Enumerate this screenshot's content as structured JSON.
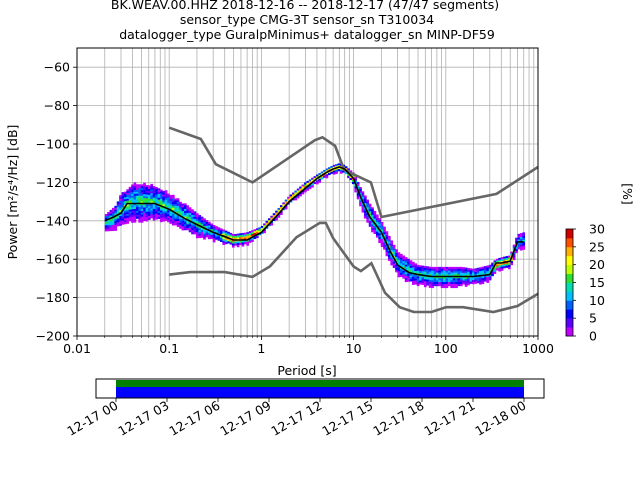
{
  "chart_data": {
    "type": "heatmap",
    "title_lines": [
      "BK.WEAV.00.HHZ   2018-12-16 -- 2018-12-17  (47/47 segments)",
      "sensor_type CMG-3T sensor_sn T310034",
      "datalogger_type GuralpMinimus+ datalogger_sn MINP-DF59"
    ],
    "xlabel": "Period [s]",
    "ylabel": "Power [m²/s⁴/Hz] [dB]",
    "xscale": "log",
    "xlim": [
      0.01,
      1000
    ],
    "ylim": [
      -200,
      -50
    ],
    "x_tick_labels": [
      {
        "x": 0.01,
        "label": "0.01"
      },
      {
        "x": 0.1,
        "label": "0.1"
      },
      {
        "x": 1,
        "label": "1"
      },
      {
        "x": 10,
        "label": "10"
      },
      {
        "x": 100,
        "label": "100"
      },
      {
        "x": 1000,
        "label": "1000"
      }
    ],
    "y_tick_labels": [
      {
        "y": -60,
        "label": "−60"
      },
      {
        "y": -80,
        "label": "−80"
      },
      {
        "y": -100,
        "label": "−100"
      },
      {
        "y": -120,
        "label": "−120"
      },
      {
        "y": -140,
        "label": "−140"
      },
      {
        "y": -160,
        "label": "−160"
      },
      {
        "y": -180,
        "label": "−180"
      },
      {
        "y": -200,
        "label": "−200"
      }
    ],
    "grid": true,
    "colorbar": {
      "label": "[%]",
      "range": [
        0,
        30
      ],
      "tick_labels": [
        {
          "v": 0,
          "label": "0"
        },
        {
          "v": 5,
          "label": "5"
        },
        {
          "v": 10,
          "label": "10"
        },
        {
          "v": 15,
          "label": "15"
        },
        {
          "v": 20,
          "label": "20"
        },
        {
          "v": 25,
          "label": "25"
        },
        {
          "v": 30,
          "label": "30"
        }
      ],
      "colors": [
        "#ffffff",
        "#bf00ff",
        "#5a00ff",
        "#0000ff",
        "#0060ff",
        "#00c0ff",
        "#00e0b0",
        "#30e030",
        "#c0ff00",
        "#ffff00",
        "#ffb000",
        "#ff5000",
        "#d00000"
      ]
    },
    "psd_band": {
      "period": [
        0.02,
        0.025,
        0.03,
        0.04,
        0.05,
        0.07,
        0.1,
        0.15,
        0.2,
        0.3,
        0.5,
        0.7,
        1,
        1.5,
        2,
        3,
        4,
        5,
        6,
        7,
        8,
        10,
        12,
        15,
        20,
        25,
        30,
        40,
        50,
        70,
        100,
        150,
        200,
        300,
        350,
        400,
        500,
        600,
        700
      ],
      "center_db": [
        -141,
        -139,
        -134,
        -130,
        -130,
        -130,
        -133,
        -138,
        -142,
        -146,
        -150,
        -149,
        -145,
        -136,
        -129,
        -122,
        -118,
        -115,
        -113,
        -112,
        -113,
        -118,
        -128,
        -137,
        -146,
        -155,
        -162,
        -166,
        -168,
        -169,
        -169,
        -169,
        -169,
        -167,
        -163,
        -162,
        -161,
        -151,
        -150
      ],
      "half_width_db": [
        4,
        6,
        8,
        10,
        10,
        9,
        8,
        7,
        6,
        4,
        3,
        3,
        2,
        2,
        2,
        2,
        2,
        2,
        2,
        2,
        2,
        3,
        5,
        6,
        6,
        6,
        6,
        6,
        5,
        5,
        5,
        5,
        4,
        4,
        3,
        3,
        3,
        4,
        4
      ]
    },
    "mode_curve": {
      "period": [
        0.02,
        0.025,
        0.03,
        0.035,
        0.05,
        0.07,
        0.1,
        0.15,
        0.2,
        0.3,
        0.5,
        0.7,
        1,
        1.5,
        2,
        3,
        4,
        5,
        6,
        7,
        8,
        10,
        12,
        15,
        20,
        25,
        30,
        40,
        50,
        70,
        100,
        150,
        200,
        300,
        350,
        400,
        500,
        600,
        700
      ],
      "db": [
        -140,
        -138,
        -136,
        -131,
        -131,
        -131,
        -134,
        -139,
        -142,
        -146,
        -150,
        -150,
        -146,
        -137,
        -130,
        -123,
        -118,
        -115,
        -113,
        -112,
        -113,
        -118,
        -128,
        -138,
        -146,
        -156,
        -163,
        -167,
        -168,
        -169,
        -169,
        -169,
        -169,
        -168,
        -162,
        -162,
        -161,
        -151,
        -151
      ]
    },
    "nhnm": {
      "period": [
        0.1,
        0.22,
        0.32,
        0.8,
        3.8,
        4.6,
        6.3,
        7.9,
        15.4,
        20,
        354.8,
        1000
      ],
      "db": [
        -91.5,
        -97.4,
        -110.5,
        -120,
        -98,
        -96.5,
        -101,
        -113.5,
        -120,
        -138,
        -126,
        -112
      ]
    },
    "nlnm": {
      "period": [
        0.1,
        0.17,
        0.4,
        0.8,
        1.24,
        2.4,
        4.3,
        5,
        6,
        10,
        12,
        15.6,
        21.9,
        31.6,
        45,
        70,
        101,
        154,
        328,
        600,
        1000
      ],
      "db": [
        -168,
        -166.7,
        -166.7,
        -169.2,
        -163.7,
        -148.6,
        -141.1,
        -141.1,
        -149,
        -163.8,
        -166.2,
        -162.1,
        -177.5,
        -185,
        -187.5,
        -187.5,
        -185,
        -185,
        -187.5,
        -184.4,
        -178
      ]
    }
  },
  "coverage": {
    "tick_labels": [
      "12-17 00",
      "12-17 03",
      "12-17 06",
      "12-17 09",
      "12-17 12",
      "12-17 15",
      "12-17 18",
      "12-17 21",
      "12-18 00"
    ],
    "range_hours": [
      0,
      24
    ],
    "green_bar_hours": [
      0,
      24
    ],
    "blue_bar_hours": [
      0,
      24
    ],
    "colors": {
      "green": "#008000",
      "blue": "#0000ff"
    }
  }
}
